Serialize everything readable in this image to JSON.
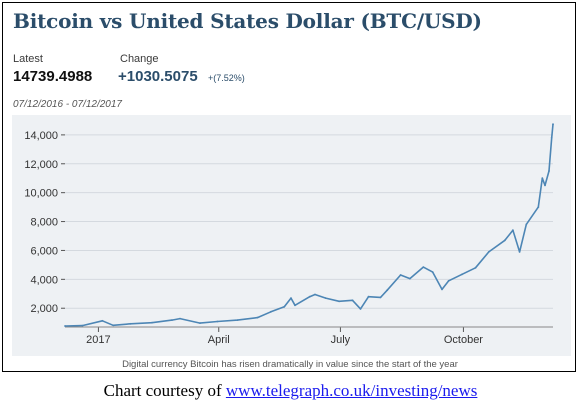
{
  "chart_data": {
    "type": "line",
    "title": "Bitcoin vs United States Dollar (BTC/USD)",
    "date_range": "07/12/2016 - 07/12/2017",
    "latest_label": "Latest",
    "latest_value": "14739.4988",
    "change_label": "Change",
    "change_value": "+1030.5075",
    "change_pct": "+(7.52%)",
    "y_ticks": [
      "2,000",
      "4,000",
      "6,000",
      "8,000",
      "10,000",
      "12,000",
      "14,000"
    ],
    "y_tick_values": [
      2000,
      4000,
      6000,
      8000,
      10000,
      12000,
      14000
    ],
    "ylim": [
      700,
      15100
    ],
    "x_ticks": [
      "2017",
      "April",
      "July",
      "October"
    ],
    "x_tick_dates": [
      "2017-01-01",
      "2017-04-01",
      "2017-07-01",
      "2017-10-01"
    ],
    "xlim": [
      "2016-12-07",
      "2017-12-07"
    ],
    "grid": true,
    "series": [
      {
        "color": "#4d86b5",
        "points": [
          [
            "2016-12-07",
            770
          ],
          [
            "2016-12-20",
            800
          ],
          [
            "2017-01-04",
            1130
          ],
          [
            "2017-01-12",
            820
          ],
          [
            "2017-01-25",
            920
          ],
          [
            "2017-02-10",
            1000
          ],
          [
            "2017-02-25",
            1180
          ],
          [
            "2017-03-03",
            1280
          ],
          [
            "2017-03-18",
            970
          ],
          [
            "2017-03-31",
            1080
          ],
          [
            "2017-04-15",
            1180
          ],
          [
            "2017-04-30",
            1350
          ],
          [
            "2017-05-10",
            1750
          ],
          [
            "2017-05-20",
            2100
          ],
          [
            "2017-05-25",
            2700
          ],
          [
            "2017-05-28",
            2200
          ],
          [
            "2017-06-08",
            2800
          ],
          [
            "2017-06-12",
            2950
          ],
          [
            "2017-06-20",
            2700
          ],
          [
            "2017-06-30",
            2480
          ],
          [
            "2017-07-10",
            2550
          ],
          [
            "2017-07-16",
            1950
          ],
          [
            "2017-07-22",
            2800
          ],
          [
            "2017-07-31",
            2750
          ],
          [
            "2017-08-05",
            3250
          ],
          [
            "2017-08-15",
            4300
          ],
          [
            "2017-08-22",
            4050
          ],
          [
            "2017-09-01",
            4850
          ],
          [
            "2017-09-08",
            4500
          ],
          [
            "2017-09-15",
            3300
          ],
          [
            "2017-09-20",
            3900
          ],
          [
            "2017-09-30",
            4350
          ],
          [
            "2017-10-10",
            4800
          ],
          [
            "2017-10-20",
            5900
          ],
          [
            "2017-11-01",
            6700
          ],
          [
            "2017-11-07",
            7400
          ],
          [
            "2017-11-12",
            5900
          ],
          [
            "2017-11-17",
            7800
          ],
          [
            "2017-11-26",
            9000
          ],
          [
            "2017-11-29",
            11000
          ],
          [
            "2017-12-01",
            10500
          ],
          [
            "2017-12-04",
            11500
          ],
          [
            "2017-12-06",
            13800
          ],
          [
            "2017-12-07",
            14739
          ]
        ]
      }
    ],
    "caption": "Digital currency Bitcoin has risen dramatically in value since the start of the year"
  },
  "credit": {
    "prefix": "Chart courtesy of ",
    "link_text": "www.telegraph.co.uk/investing/news"
  },
  "colors": {
    "title": "#2b4d6a",
    "line": "#4d86b5",
    "plot_background": "#eef1f4",
    "link": "#1a1aee"
  }
}
